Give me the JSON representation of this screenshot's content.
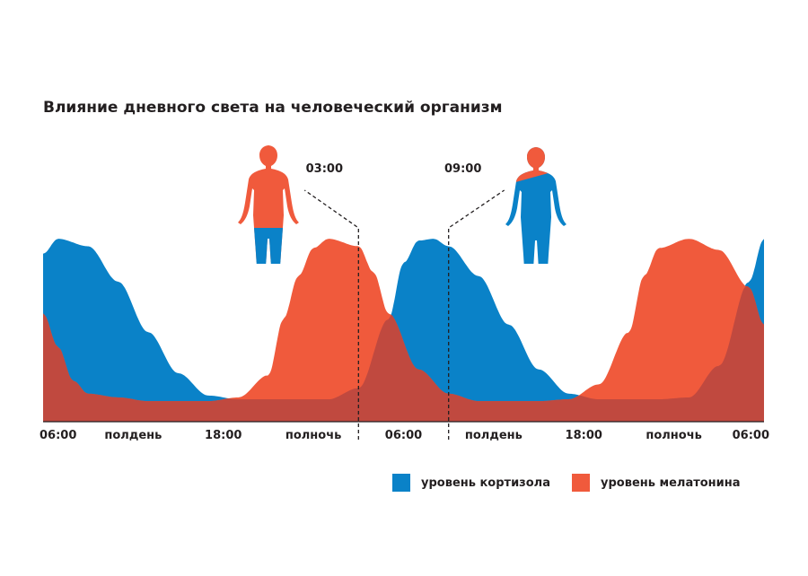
{
  "chart_data": {
    "type": "area",
    "title": "Влияние дневного света на человеческий организм",
    "x_ticks": [
      "06:00",
      "полдень",
      "18:00",
      "полночь",
      "06:00",
      "полдень",
      "18:00",
      "полночь",
      "06:00"
    ],
    "x_range_hours": [
      0,
      48
    ],
    "y_range": [
      0,
      1
    ],
    "series": [
      {
        "name": "уровень кортизола",
        "color": "#0a82c8",
        "x": [
          0,
          1,
          3,
          5,
          7,
          9,
          11,
          13,
          15,
          17,
          19,
          21,
          23,
          24,
          25,
          26,
          27,
          29,
          31,
          33,
          35,
          37,
          39,
          41,
          43,
          45,
          47,
          48
        ],
        "values": [
          0.9,
          0.98,
          0.94,
          0.75,
          0.48,
          0.26,
          0.14,
          0.12,
          0.12,
          0.12,
          0.12,
          0.18,
          0.55,
          0.85,
          0.97,
          0.98,
          0.94,
          0.78,
          0.52,
          0.28,
          0.15,
          0.12,
          0.12,
          0.12,
          0.13,
          0.3,
          0.75,
          0.98
        ]
      },
      {
        "name": "уровень мелатонина",
        "color": "#f05a3c",
        "x": [
          0,
          1,
          2,
          3,
          5,
          7,
          9,
          11,
          13,
          15,
          16,
          17,
          18,
          19,
          21,
          22,
          23,
          25,
          27,
          29,
          31,
          33,
          35,
          37,
          39,
          40,
          41,
          43,
          45,
          47,
          48
        ],
        "values": [
          0.58,
          0.4,
          0.22,
          0.15,
          0.13,
          0.11,
          0.11,
          0.11,
          0.13,
          0.25,
          0.55,
          0.78,
          0.93,
          0.98,
          0.94,
          0.8,
          0.58,
          0.28,
          0.15,
          0.11,
          0.11,
          0.11,
          0.12,
          0.2,
          0.48,
          0.78,
          0.93,
          0.98,
          0.92,
          0.72,
          0.52
        ]
      }
    ],
    "overlap_color": "#c0493f",
    "markers": [
      {
        "label": "03:00",
        "hour": 21
      },
      {
        "label": "09:00",
        "hour": 27
      }
    ],
    "legend_position": "bottom-right",
    "grid": false
  },
  "figures": [
    {
      "name": "body-melatonin-figure",
      "top_color": "#f05a3c",
      "bottom_color": "#f05a3c",
      "leg_color": "#0a82c8"
    },
    {
      "name": "body-cortisol-figure",
      "top_color": "#f05a3c",
      "bottom_color": "#0a82c8",
      "leg_color": "#0a82c8"
    }
  ]
}
